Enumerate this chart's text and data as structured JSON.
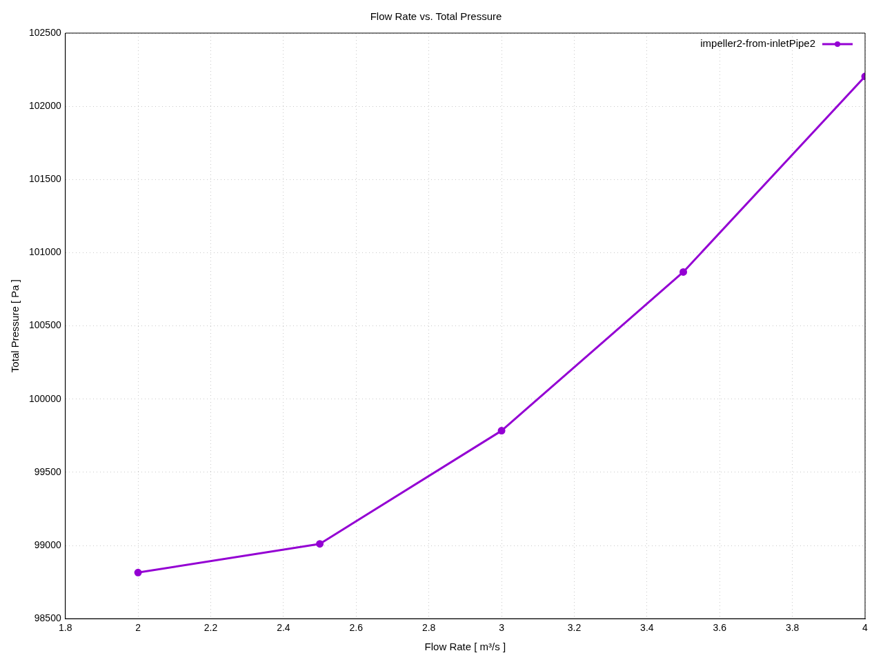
{
  "chart_data": {
    "type": "line",
    "title": "Flow Rate vs. Total Pressure",
    "xlabel": "Flow Rate [ m³/s ]",
    "ylabel": "Total Pressure [ Pa ]",
    "x": [
      2,
      2.5,
      3,
      3.5,
      4
    ],
    "series": [
      {
        "name": "impeller2-from-inletPipe2",
        "color": "#9400d3",
        "values": [
          98815,
          99011,
          99784,
          100868,
          102204
        ]
      }
    ],
    "xlim": [
      1.8,
      4
    ],
    "xticks": [
      1.8,
      2,
      2.2,
      2.4,
      2.6,
      2.8,
      3,
      3.2,
      3.4,
      3.6,
      3.8,
      4
    ],
    "ylim": [
      98500,
      102500
    ],
    "yticks": [
      98500,
      99000,
      99500,
      100000,
      100500,
      101000,
      101500,
      102000,
      102500
    ],
    "grid": true,
    "legend": "top right",
    "marker": "circle",
    "line_style": "solid"
  }
}
